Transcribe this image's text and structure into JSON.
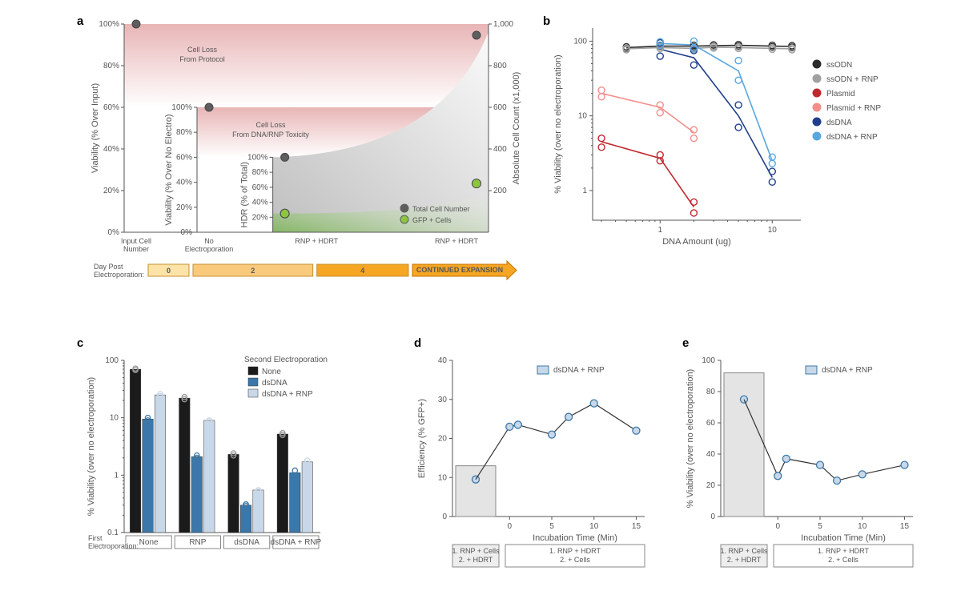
{
  "panels": {
    "a": {
      "label": "a",
      "outer_y_title": "Viability (% Over Input)",
      "mid_y_title": "Viability (% Over No Electro)",
      "inner_y_title": "HDR (% of Total)",
      "right_y_title": "Absolute Cell Count (x1,000)",
      "x_ticks": [
        "Input Cell Number",
        "No Electroporation",
        "RNP + HDRT",
        "RNP + HDRT"
      ],
      "x_prefix": "Day Post Electroporation:",
      "timeline_labels": [
        "0",
        "2",
        "4",
        "CONTINUED EXPANSION"
      ],
      "timeline_colors": [
        "#fde3a7",
        "#f9c97c",
        "#f5a623",
        "#f5a623"
      ],
      "outer_ticks": [
        0,
        20,
        40,
        60,
        80,
        100
      ],
      "right_ticks": [
        200,
        400,
        600,
        800,
        "1,000"
      ],
      "annot1": "Cell Loss From Protocol",
      "annot2": "Cell Loss From DNA/RNP Toxicity",
      "legend": [
        {
          "label": "Total Cell Number",
          "fill": "#5e5e5e",
          "stroke": "#5e5e5e"
        },
        {
          "label": "GFP + Cells",
          "fill": "#8cc63f",
          "stroke": "#5e5e5e"
        }
      ],
      "colors": {
        "pink": "#e8b5b6",
        "green": "#6db33f",
        "grey": "#9c9c9c"
      }
    },
    "b": {
      "label": "b",
      "x_title": "DNA Amount (ug)",
      "y_title": "% Viability (over no electroporation)",
      "x_ticks": [
        1,
        10
      ],
      "y_ticks": [
        1,
        10,
        100
      ],
      "series": [
        {
          "name": "ssODN",
          "color": "#2b2b2b",
          "fill": "#2b2b2b",
          "pts": [
            [
              0.5,
              82
            ],
            [
              1,
              86
            ],
            [
              2,
              86
            ],
            [
              3,
              87
            ],
            [
              5,
              88
            ],
            [
              10,
              86
            ],
            [
              15,
              85
            ]
          ]
        },
        {
          "name": "ssODN + RNP",
          "color": "#a0a0a0",
          "fill": "#a0a0a0",
          "pts": [
            [
              0.5,
              79
            ],
            [
              1,
              82
            ],
            [
              2,
              80
            ],
            [
              3,
              83
            ],
            [
              5,
              82
            ],
            [
              10,
              80
            ],
            [
              15,
              79
            ]
          ]
        },
        {
          "name": "Plasmid",
          "color": "#c1272d",
          "fill": "#c1272d",
          "pts": [
            [
              0.3,
              4.5
            ],
            [
              1,
              2.7
            ],
            [
              2,
              0.6
            ]
          ]
        },
        {
          "name": "Plasmid + RNP",
          "color": "#f18f8a",
          "fill": "#f18f8a",
          "pts": [
            [
              0.3,
              20
            ],
            [
              1,
              13
            ],
            [
              2,
              6
            ]
          ]
        },
        {
          "name": "dsDNA",
          "color": "#1f3f8c",
          "fill": "#1f3f8c",
          "pts": [
            [
              1,
              78
            ],
            [
              2,
              60
            ],
            [
              5,
              10
            ],
            [
              10,
              1.5
            ]
          ]
        },
        {
          "name": "dsDNA + RNP",
          "color": "#5aa7e0",
          "fill": "#5aa7e0",
          "pts": [
            [
              1,
              93
            ],
            [
              2,
              89
            ],
            [
              5,
              40
            ],
            [
              10,
              2.5
            ]
          ]
        }
      ],
      "scatter": [
        {
          "color": "#2b2b2b",
          "pts": [
            [
              0.5,
              80
            ],
            [
              0.5,
              84
            ],
            [
              1,
              85
            ],
            [
              1,
              88
            ],
            [
              2,
              84
            ],
            [
              2,
              88
            ],
            [
              3,
              85
            ],
            [
              3,
              89
            ],
            [
              5,
              86
            ],
            [
              5,
              90
            ],
            [
              10,
              84
            ],
            [
              10,
              88
            ],
            [
              15,
              83
            ],
            [
              15,
              87
            ]
          ]
        },
        {
          "color": "#a0a0a0",
          "pts": [
            [
              0.5,
              77
            ],
            [
              0.5,
              81
            ],
            [
              1,
              80
            ],
            [
              1,
              84
            ],
            [
              2,
              78
            ],
            [
              2,
              82
            ],
            [
              3,
              81
            ],
            [
              3,
              85
            ],
            [
              5,
              80
            ],
            [
              5,
              84
            ],
            [
              10,
              78
            ],
            [
              10,
              82
            ],
            [
              15,
              77
            ],
            [
              15,
              81
            ]
          ]
        },
        {
          "color": "#c1272d",
          "pts": [
            [
              0.3,
              5
            ],
            [
              0.3,
              3.8
            ],
            [
              1,
              2.5
            ],
            [
              1,
              3
            ],
            [
              2,
              0.5
            ],
            [
              2,
              0.7
            ]
          ]
        },
        {
          "color": "#f18f8a",
          "pts": [
            [
              0.3,
              22
            ],
            [
              0.3,
              18
            ],
            [
              1,
              14
            ],
            [
              1,
              11
            ],
            [
              2,
              6.5
            ],
            [
              2,
              5
            ]
          ]
        },
        {
          "color": "#1f3f8c",
          "pts": [
            [
              1,
              95
            ],
            [
              1,
              63
            ],
            [
              2,
              75
            ],
            [
              2,
              48
            ],
            [
              5,
              14
            ],
            [
              5,
              7
            ],
            [
              10,
              1.3
            ],
            [
              10,
              1.8
            ]
          ]
        },
        {
          "color": "#5aa7e0",
          "pts": [
            [
              1,
              98
            ],
            [
              1,
              88
            ],
            [
              2,
              100
            ],
            [
              2,
              80
            ],
            [
              5,
              55
            ],
            [
              5,
              30
            ],
            [
              10,
              2.3
            ],
            [
              10,
              2.8
            ]
          ]
        }
      ]
    },
    "c": {
      "label": "c",
      "x_title_prefix": "First Electroporation:",
      "y_title": "% Viability (over no electroporation)",
      "groups": [
        "None",
        "RNP",
        "dsDNA",
        "dsDNA + RNP"
      ],
      "legend_title": "Second Electroporation",
      "legend": [
        {
          "label": "None",
          "fill": "#1b1b1b"
        },
        {
          "label": "dsDNA",
          "fill": "#3b77a8"
        },
        {
          "label": "dsDNA + RNP",
          "fill": "#c9d8e8"
        }
      ],
      "y_ticks": [
        0.1,
        1,
        10,
        100
      ],
      "values": [
        [
          70,
          9.5,
          25
        ],
        [
          22,
          2.1,
          9
        ],
        [
          2.3,
          0.3,
          0.55
        ],
        [
          5.2,
          1.1,
          1.7
        ]
      ],
      "points": [
        [
          [
            72,
            68
          ],
          [
            10,
            9
          ],
          [
            26,
            24
          ]
        ],
        [
          [
            23,
            21
          ],
          [
            2.0,
            2.2
          ],
          [
            9,
            8.8
          ]
        ],
        [
          [
            2.4,
            2.2
          ],
          [
            0.31,
            0.29
          ],
          [
            0.55,
            0.52
          ]
        ],
        [
          [
            5.4,
            5.0
          ],
          [
            1.2,
            1.0
          ],
          [
            1.8,
            1.6
          ]
        ]
      ]
    },
    "d": {
      "label": "d",
      "y_title": "Efficiency (% GFP+)",
      "x_title": "Incubation Time (Min)",
      "x_ticks": [
        0,
        5,
        10,
        15
      ],
      "y_ticks": [
        0,
        10,
        20,
        30,
        40
      ],
      "legend": {
        "label": "dsDNA + RNP",
        "fill": "#c9d8e8",
        "stroke": "#3b77a8"
      },
      "bar": {
        "x": "box",
        "val": 13
      },
      "box_left": [
        "1. RNP + Cells",
        "2. + HDRT"
      ],
      "box_right": [
        "1. RNP + HDRT",
        "2. + Cells"
      ],
      "pts": [
        [
          -2,
          9.5
        ],
        [
          0,
          23
        ],
        [
          1,
          23.5
        ],
        [
          5,
          21
        ],
        [
          7,
          25.5
        ],
        [
          10,
          29
        ],
        [
          15,
          22
        ]
      ],
      "marker": {
        "fill": "#c9d8e8",
        "stroke": "#3b77a8"
      }
    },
    "e": {
      "label": "e",
      "y_title": "% Viability (over no electroporation)",
      "x_title": "Incubation Time (Min)",
      "x_ticks": [
        0,
        5,
        10,
        15
      ],
      "y_ticks": [
        0,
        20,
        40,
        60,
        80,
        100
      ],
      "legend": {
        "label": "dsDNA + RNP",
        "fill": "#c9d8e8",
        "stroke": "#3b77a8"
      },
      "bar": {
        "x": "box",
        "val": 92
      },
      "box_left": [
        "1. RNP + Cells",
        "2. + HDRT"
      ],
      "box_right": [
        "1. RNP + HDRT",
        "2. + Cells"
      ],
      "pts": [
        [
          -2,
          75
        ],
        [
          0,
          26
        ],
        [
          1,
          37
        ],
        [
          5,
          33
        ],
        [
          7,
          23
        ],
        [
          10,
          27
        ],
        [
          15,
          33
        ]
      ],
      "marker": {
        "fill": "#c9d8e8",
        "stroke": "#3b77a8"
      }
    }
  }
}
